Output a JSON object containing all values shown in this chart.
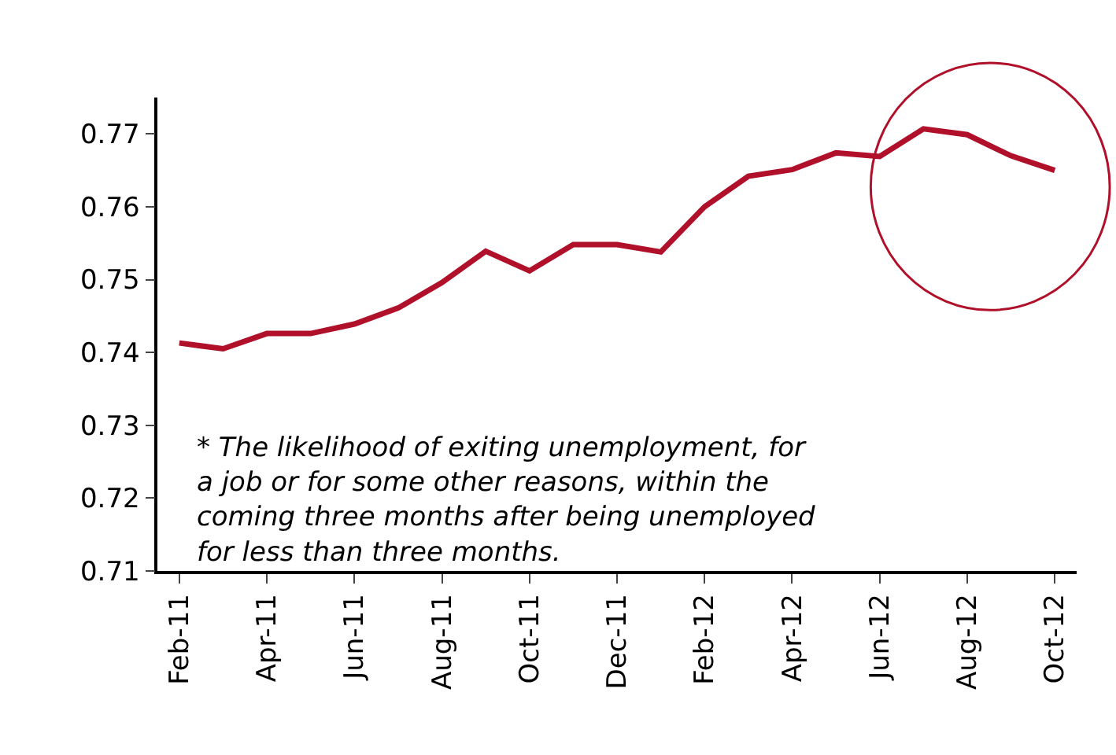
{
  "chart_data": {
    "type": "line",
    "categories": [
      "Feb-11",
      null,
      "Apr-11",
      null,
      "Jun-11",
      null,
      "Aug-11",
      null,
      "Oct-11",
      null,
      "Dec-11",
      null,
      "Feb-12",
      null,
      "Apr-12",
      null,
      "Jun-12",
      null,
      "Aug-12",
      null,
      "Oct-12"
    ],
    "series": [
      {
        "color": "#b0102a",
        "values": [
          0.7413,
          0.7405,
          0.7426,
          0.7426,
          0.7439,
          0.7461,
          0.7496,
          0.7539,
          0.7512,
          0.7548,
          0.7548,
          0.7538,
          0.76,
          0.7642,
          0.7651,
          0.7674,
          0.7669,
          0.7707,
          0.7699,
          0.767,
          0.765
        ]
      }
    ],
    "ylim": [
      0.71,
      0.775
    ],
    "yticks": [
      0.71,
      0.72,
      0.73,
      0.74,
      0.75,
      0.76,
      0.77
    ],
    "marker": "none",
    "line_style": "solid",
    "annotations": [
      "* The likelihood of exiting unemployment, for\na job or for some other reasons, within the\ncoming three months after being unemployed\nfor less than three months."
    ]
  }
}
